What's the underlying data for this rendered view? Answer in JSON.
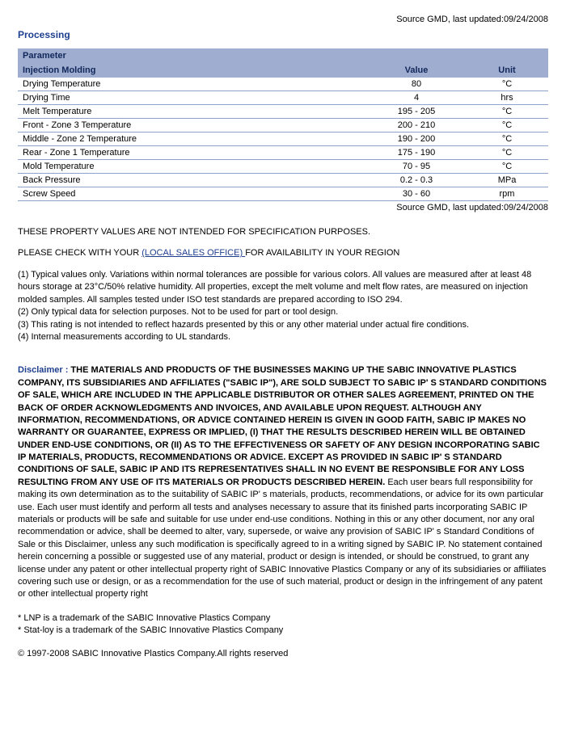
{
  "source_top": "Source GMD, last updated:09/24/2008",
  "section_title": "Processing",
  "table": {
    "header_label": "Parameter",
    "subheader": {
      "param": "Injection Molding",
      "value": "Value",
      "unit": "Unit"
    },
    "rows": [
      {
        "param": "Drying Temperature",
        "value": "80",
        "unit": "°C"
      },
      {
        "param": "Drying Time",
        "value": "4",
        "unit": "hrs"
      },
      {
        "param": "Melt Temperature",
        "value": "195 - 205",
        "unit": "°C"
      },
      {
        "param": "Front - Zone 3 Temperature",
        "value": "200 - 210",
        "unit": "°C"
      },
      {
        "param": "Middle - Zone 2 Temperature",
        "value": "190 - 200",
        "unit": "°C"
      },
      {
        "param": "Rear - Zone 1 Temperature",
        "value": "175 - 190",
        "unit": "°C"
      },
      {
        "param": "Mold Temperature",
        "value": "70 - 95",
        "unit": "°C"
      },
      {
        "param": "Back Pressure",
        "value": "0.2 - 0.3",
        "unit": "MPa"
      },
      {
        "param": "Screw Speed",
        "value": "30 - 60",
        "unit": "rpm"
      }
    ]
  },
  "source_bottom": "Source GMD, last updated:09/24/2008",
  "notice": "THESE PROPERTY VALUES ARE NOT INTENDED FOR SPECIFICATION PURPOSES.",
  "check": {
    "before": "PLEASE CHECK WITH YOUR ",
    "link": "(LOCAL SALES OFFICE) ",
    "after": "FOR AVAILABILITY IN YOUR REGION"
  },
  "notes": [
    "(1) Typical values only. Variations within normal tolerances are possible for various colors. All values are measured after at least 48 hours storage at 23°C/50% relative humidity. All properties, except the melt volume and melt flow rates, are measured on injection molded samples. All samples tested under ISO test standards are prepared according to ISO 294.",
    "(2) Only typical data for selection purposes. Not to be used for part or tool design.",
    "(3) This rating is not intended to reflect hazards presented by this or any other material under actual fire conditions.",
    "(4) Internal measurements according to UL standards."
  ],
  "disclaimer": {
    "label": "Disclaimer : ",
    "bold": "THE MATERIALS AND PRODUCTS OF THE BUSINESSES MAKING UP THE SABIC INNOVATIVE PLASTICS COMPANY, ITS SUBSIDIARIES AND AFFILIATES (\"SABIC IP\"), ARE SOLD SUBJECT TO SABIC IP' S STANDARD CONDITIONS OF SALE, WHICH ARE INCLUDED IN THE APPLICABLE DISTRIBUTOR OR OTHER SALES AGREEMENT, PRINTED ON THE BACK OF ORDER ACKNOWLEDGMENTS AND INVOICES, AND AVAILABLE UPON REQUEST. ALTHOUGH ANY INFORMATION, RECOMMENDATIONS, OR ADVICE CONTAINED HEREIN IS GIVEN IN GOOD FAITH, SABIC IP MAKES NO WARRANTY OR GUARANTEE, EXPRESS OR IMPLIED, (I) THAT THE RESULTS DESCRIBED HEREIN WILL BE OBTAINED UNDER END-USE CONDITIONS, OR (II) AS TO THE EFFECTIVENESS OR SAFETY OF ANY DESIGN INCORPORATING SABIC IP MATERIALS, PRODUCTS, RECOMMENDATIONS OR ADVICE. EXCEPT AS PROVIDED IN SABIC IP' S STANDARD CONDITIONS OF SALE, SABIC IP AND ITS REPRESENTATIVES SHALL IN NO EVENT BE RESPONSIBLE FOR ANY LOSS RESULTING FROM ANY USE OF ITS MATERIALS OR PRODUCTS DESCRIBED HEREIN. ",
    "rest": "Each user bears full responsibility for making its own determination as to the suitability of SABIC IP' s materials, products, recommendations, or advice for its own particular use. Each user must identify and perform all tests and analyses necessary to assure that its finished parts incorporating SABIC IP materials or products will be safe and suitable for use under end-use conditions. Nothing in this or any other document, nor any oral recommendation or advice, shall be deemed to alter, vary, supersede, or waive any provision of SABIC IP' s Standard Conditions of Sale or this Disclaimer, unless any such modification is specifically agreed to in a writing signed by SABIC IP. No statement contained herein concerning a possible or suggested use of any material, product or design is intended, or should be construed, to grant any license under any patent or other intellectual property right of SABIC Innovative Plastics Company or any of its subsidiaries or affiliates covering such use or design, or as a recommendation for the use of such material, product or design in the infringement of any patent or other intellectual property right"
  },
  "trademarks": [
    "* LNP is a trademark of the SABIC Innovative Plastics Company",
    "* Stat-loy is a trademark of the SABIC Innovative Plastics Company"
  ],
  "copyright": "© 1997-2008 SABIC Innovative Plastics Company.All rights reserved"
}
